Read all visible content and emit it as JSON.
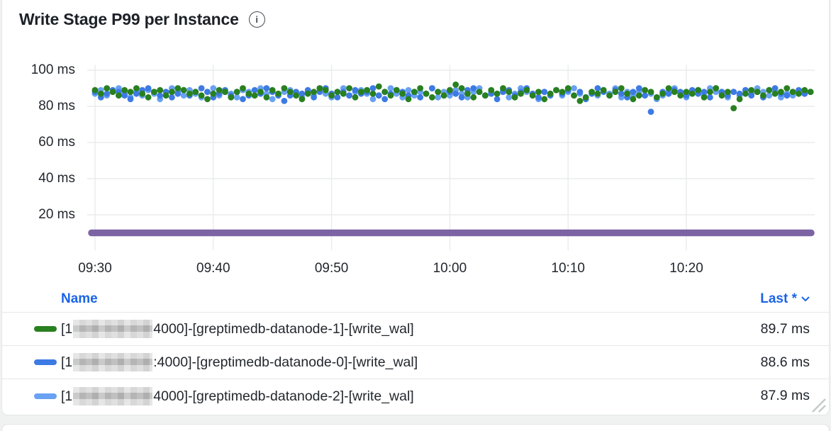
{
  "panel": {
    "title": "Write Stage P99 per Instance"
  },
  "icons": {
    "info_glyph": "i"
  },
  "legend": {
    "name_header": "Name",
    "last_header": "Last *",
    "rows": [
      {
        "color": "#28801f",
        "label_prefix": "[1",
        "label_suffix": "4000]-[greptimedb-datanode-1]-[write_wal]",
        "value": "89.7 ms"
      },
      {
        "color": "#3d7ae3",
        "label_prefix": "[1",
        "label_suffix": ":4000]-[greptimedb-datanode-0]-[write_wal]",
        "value": "88.6 ms"
      },
      {
        "color": "#69a2f3",
        "label_prefix": "[1",
        "label_suffix": "4000]-[greptimedb-datanode-2]-[write_wal]",
        "value": "87.9 ms"
      }
    ]
  },
  "chart_data": {
    "type": "scatter",
    "title": "Write Stage P99 per Instance",
    "xlabel": "",
    "ylabel": "",
    "y_unit": "ms",
    "ylim": [
      0,
      103
    ],
    "grid": true,
    "legend_position": "bottom-table",
    "y_ticks": [
      {
        "label": "100 ms",
        "value": 100
      },
      {
        "label": "80 ms",
        "value": 80
      },
      {
        "label": "60 ms",
        "value": 60
      },
      {
        "label": "40 ms",
        "value": 40
      },
      {
        "label": "20 ms",
        "value": 20
      }
    ],
    "x_ticks": [
      {
        "label": "09:30",
        "minute": 0
      },
      {
        "label": "09:40",
        "minute": 10
      },
      {
        "label": "09:50",
        "minute": 20
      },
      {
        "label": "10:00",
        "minute": 30
      },
      {
        "label": "10:10",
        "minute": 40
      },
      {
        "label": "10:20",
        "minute": 50
      }
    ],
    "x_start_minute": -0.5,
    "x_step_minute": 0.5,
    "series": [
      {
        "name": "[1…4000]-[greptimedb-datanode-2]-[write_wal]",
        "color": "#69a2f3",
        "last": 87.9,
        "values": [
          85,
          87,
          89,
          86,
          88,
          90,
          87,
          85,
          88,
          86,
          89,
          87,
          84,
          88,
          90,
          88,
          86,
          89,
          87,
          85,
          88,
          90,
          86,
          88,
          87,
          85,
          89,
          88,
          86,
          90,
          87,
          84,
          86,
          88,
          89,
          87,
          85,
          88,
          86,
          90,
          87,
          85,
          88,
          90,
          86,
          88,
          89,
          87,
          84,
          86,
          88,
          90,
          87,
          85,
          89,
          86,
          88,
          87,
          90,
          85,
          88,
          86,
          89,
          87,
          85,
          88,
          90,
          86,
          88,
          87,
          89,
          85,
          87,
          90,
          88,
          86,
          84,
          88,
          87,
          89,
          86,
          88,
          90,
          87,
          85,
          88,
          86,
          89,
          87,
          90,
          85,
          88,
          86,
          88,
          89,
          87,
          84,
          86,
          88,
          90,
          87,
          85,
          88,
          89,
          86,
          90,
          88,
          87,
          85,
          88,
          86,
          89,
          87,
          90,
          88,
          86,
          88,
          85,
          87,
          86,
          88,
          87,
          88,
          87.9
        ]
      },
      {
        "name": "[1…:4000]-[greptimedb-datanode-0]-[write_wal]",
        "color": "#3d7ae3",
        "last": 88.6,
        "values": [
          86,
          88,
          85,
          87,
          89,
          88,
          86,
          84,
          87,
          89,
          90,
          88,
          86,
          88,
          85,
          87,
          89,
          86,
          88,
          90,
          88,
          85,
          87,
          89,
          86,
          88,
          84,
          86,
          89,
          87,
          90,
          88,
          86,
          83,
          86,
          88,
          87,
          89,
          85,
          88,
          90,
          87,
          85,
          88,
          86,
          89,
          87,
          88,
          90,
          86,
          84,
          87,
          89,
          88,
          86,
          88,
          85,
          87,
          90,
          88,
          86,
          88,
          87,
          85,
          89,
          90,
          88,
          86,
          87,
          84,
          88,
          89,
          86,
          88,
          90,
          87,
          85,
          88,
          86,
          89,
          87,
          89,
          86,
          88,
          84,
          87,
          90,
          88,
          86,
          89,
          87,
          85,
          88,
          90,
          86,
          77,
          85,
          88,
          87,
          89,
          88,
          86,
          89,
          87,
          88,
          85,
          90,
          88,
          86,
          88,
          87,
          89,
          86,
          88,
          85,
          89,
          90,
          87,
          86,
          88,
          89,
          87,
          88,
          88.6
        ]
      },
      {
        "name": "[1…4000]-[greptimedb-datanode-1]-[write_wal]",
        "color": "#28801f",
        "last": 89.7,
        "values": [
          88,
          89,
          87,
          90,
          88,
          86,
          89,
          88,
          90,
          87,
          85,
          88,
          89,
          86,
          88,
          90,
          89,
          87,
          88,
          86,
          84,
          87,
          89,
          88,
          85,
          88,
          90,
          87,
          86,
          88,
          85,
          89,
          87,
          90,
          88,
          86,
          84,
          87,
          88,
          90,
          89,
          86,
          88,
          87,
          90,
          85,
          88,
          89,
          87,
          91,
          88,
          86,
          89,
          87,
          84,
          88,
          90,
          87,
          85,
          88,
          86,
          89,
          92,
          90,
          87,
          85,
          88,
          86,
          89,
          87,
          90,
          88,
          85,
          87,
          89,
          86,
          88,
          84,
          87,
          89,
          88,
          90,
          86,
          83,
          85,
          88,
          87,
          89,
          86,
          88,
          90,
          87,
          84,
          86,
          89,
          88,
          85,
          87,
          90,
          88,
          86,
          88,
          87,
          89,
          85,
          88,
          90,
          86,
          88,
          79,
          84,
          87,
          89,
          88,
          86,
          89,
          87,
          88,
          90,
          88,
          87,
          89,
          88,
          89.7
        ]
      }
    ],
    "baseline_series": {
      "name": "",
      "color": "#7c63a3",
      "constant_value": 10
    }
  }
}
